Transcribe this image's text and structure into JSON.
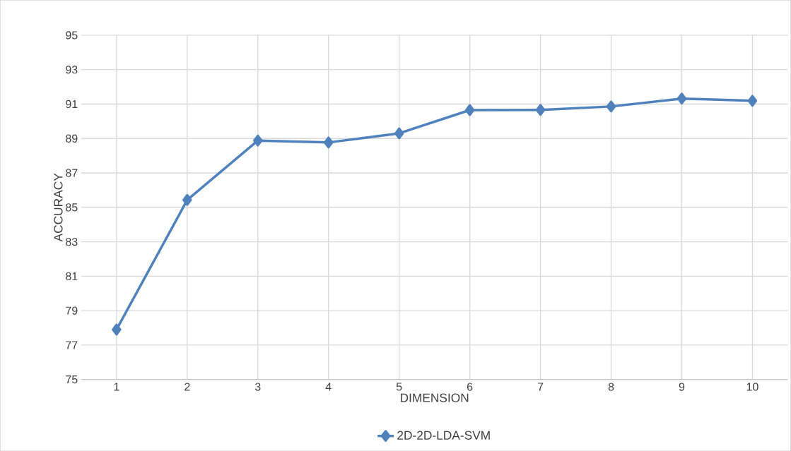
{
  "chart_data": {
    "type": "line",
    "xlabel": "DIMENSION",
    "ylabel": "ACCURACY",
    "categories": [
      "1",
      "2",
      "3",
      "4",
      "5",
      "6",
      "7",
      "8",
      "9",
      "10"
    ],
    "series": [
      {
        "name": "2D-2D-LDA-SVM",
        "color": "#4f81bd",
        "values": [
          77.9,
          85.43,
          88.88,
          88.77,
          89.3,
          90.65,
          90.66,
          90.86,
          91.32,
          91.19
        ]
      }
    ],
    "ylim": [
      75,
      95
    ],
    "yticks": [
      75,
      77,
      79,
      81,
      83,
      85,
      87,
      89,
      91,
      93,
      95
    ],
    "grid": true,
    "legend": "bottom",
    "marker": "diamond",
    "line_style": "solid"
  }
}
